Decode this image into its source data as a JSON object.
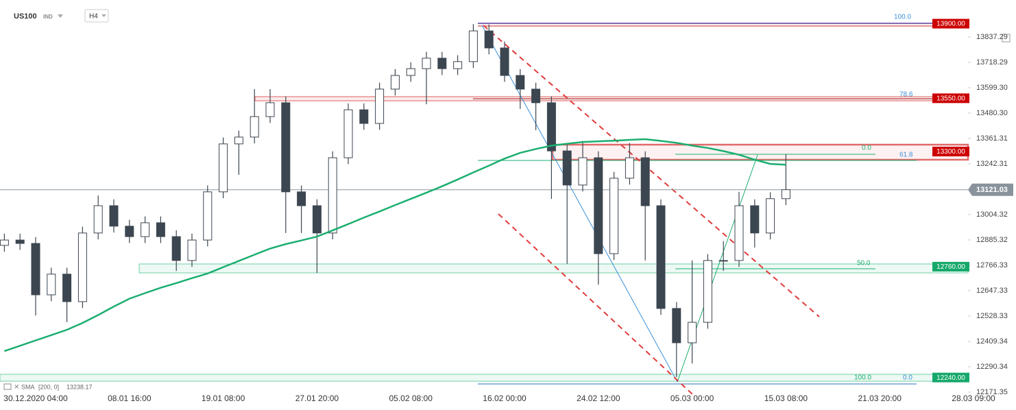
{
  "header": {
    "symbol": "US100",
    "market": "IND",
    "timeframe": "H4"
  },
  "chart_data": {
    "type": "candlestick",
    "categories": [
      null,
      null,
      "30.12.2020 04:00",
      null,
      null,
      null,
      null,
      null,
      "08.01 16:00",
      null,
      null,
      null,
      null,
      null,
      "19.01 08:00",
      null,
      null,
      null,
      null,
      null,
      "27.01 20:00",
      null,
      null,
      null,
      null,
      null,
      "05.02 08:00",
      null,
      null,
      null,
      null,
      null,
      "16.02 00:00",
      null,
      null,
      null,
      null,
      null,
      "24.02 12:00",
      null,
      null,
      null,
      null,
      null,
      "05.03 00:00",
      null,
      null,
      null,
      null,
      null,
      "15.03 08:00",
      null,
      null,
      null,
      null,
      null,
      "21.03 20:00",
      null,
      null,
      null,
      null,
      null,
      "28.03 09:00"
    ],
    "open": [
      12860,
      12885,
      12869,
      12628,
      12725,
      12596,
      12918,
      13046,
      12950,
      12901,
      12966,
      12901,
      12789,
      12885,
      13111,
      13336,
      13368,
      13464,
      13529,
      13111,
      13046,
      12918,
      13271,
      13496,
      13432,
      13593,
      13657,
      13689,
      13738,
      13689,
      13722,
      13866,
      13786,
      13657,
      13593,
      13529,
      13303,
      13143,
      13271,
      12821,
      13175,
      13271,
      13046,
      12564,
      12403,
      12499,
      12789,
      12789,
      13046,
      12918,
      13079,
      null,
      null,
      null,
      null,
      null,
      null,
      null,
      null,
      null,
      null,
      null,
      null
    ],
    "high": [
      12915,
      12915,
      12899,
      12755,
      12755,
      12948,
      13094,
      13076,
      12980,
      12996,
      12996,
      12931,
      12915,
      13141,
      13366,
      13398,
      13593,
      13593,
      13559,
      13141,
      13076,
      13301,
      13526,
      13526,
      13623,
      13687,
      13719,
      13768,
      13768,
      13752,
      13898,
      13896,
      13816,
      13687,
      13623,
      13559,
      13333,
      13350,
      13301,
      13205,
      13340,
      13301,
      13076,
      12594,
      12789,
      12819,
      12880,
      13111,
      13076,
      13109,
      13287,
      null,
      null,
      null,
      null,
      null,
      null,
      null,
      null,
      null,
      null,
      null,
      null
    ],
    "low": [
      12830,
      12839,
      12531,
      12598,
      12500,
      12566,
      12888,
      12920,
      12871,
      12871,
      12871,
      12740,
      12759,
      12855,
      13081,
      13191,
      13338,
      13434,
      12918,
      12918,
      12731,
      12888,
      13241,
      13402,
      13402,
      13563,
      13627,
      13522,
      13659,
      13659,
      13692,
      13756,
      13627,
      13500,
      13400,
      13078,
      12773,
      13113,
      12676,
      12791,
      13145,
      12789,
      12534,
      12242,
      12306,
      12469,
      12740,
      12759,
      12850,
      12888,
      13049,
      null,
      null,
      null,
      null,
      null,
      null,
      null,
      null,
      null,
      null,
      null,
      null
    ],
    "close": [
      12885,
      12869,
      12628,
      12725,
      12596,
      12918,
      13046,
      12950,
      12901,
      12966,
      12901,
      12789,
      12885,
      13111,
      13336,
      13368,
      13464,
      13529,
      13111,
      13046,
      12918,
      13271,
      13496,
      13432,
      13593,
      13657,
      13689,
      13738,
      13689,
      13722,
      13866,
      13786,
      13657,
      13593,
      13529,
      13303,
      13143,
      13271,
      12821,
      13175,
      13271,
      13046,
      12564,
      12403,
      12499,
      12789,
      12789,
      13046,
      12918,
      13079,
      13121.03,
      null,
      null,
      null,
      null,
      null,
      null,
      null,
      null,
      null,
      null,
      null,
      null
    ],
    "up_color": "#ffffff",
    "down_color": "#3c4650",
    "wick_color": "#3c4650",
    "series": [
      {
        "name": "SMA",
        "params": "[200, 0]",
        "color": "#1aae6f",
        "last_value": 13238.17,
        "values": [
          12364,
          12389,
          12414,
          12439,
          12464,
          12496,
          12533,
          12573,
          12610,
          12636,
          12661,
          12683,
          12706,
          12728,
          12758,
          12787,
          12816,
          12845,
          12866,
          12883,
          12901,
          12930,
          12960,
          12990,
          13019,
          13049,
          13078,
          13107,
          13137,
          13169,
          13202,
          13234,
          13267,
          13294,
          13312,
          13328,
          13337,
          13345,
          13348,
          13351,
          13355,
          13358,
          13350,
          13341,
          13328,
          13317,
          13302,
          13285,
          13262,
          13242,
          13238.17,
          null,
          null,
          null,
          null,
          null,
          null,
          null,
          null,
          null,
          null,
          null,
          null
        ]
      }
    ],
    "last_price": 13121.03,
    "ylim": [
      12161.6,
      14011
    ],
    "yticks": [
      13837.29,
      13718.29,
      {
        "value": 13599.3,
        "label": "13599.30"
      },
      {
        "value": 13480.3,
        "label": "13480.30"
      },
      13361.31,
      13242.31,
      13004.32,
      12885.32,
      12766.33,
      12647.33,
      12528.33,
      12409.34,
      12290.34,
      12171.35
    ],
    "levels": [
      {
        "value": 13900,
        "label": "13900.00",
        "color": "#cc0000"
      },
      {
        "value": 13550,
        "label": "13550.00",
        "color": "#cc0000"
      },
      {
        "value": 13300,
        "label": "13300.00",
        "color": "#cc0000"
      },
      {
        "value": 12760,
        "label": "12760.00",
        "color": "#16a86b"
      },
      {
        "value": 12240,
        "label": "12240.00",
        "color": "#16a86b"
      }
    ],
    "annotations": [
      "100.0",
      "78.6",
      "0.0",
      "61.8",
      "50.0",
      "100.0",
      "0.0"
    ]
  }
}
